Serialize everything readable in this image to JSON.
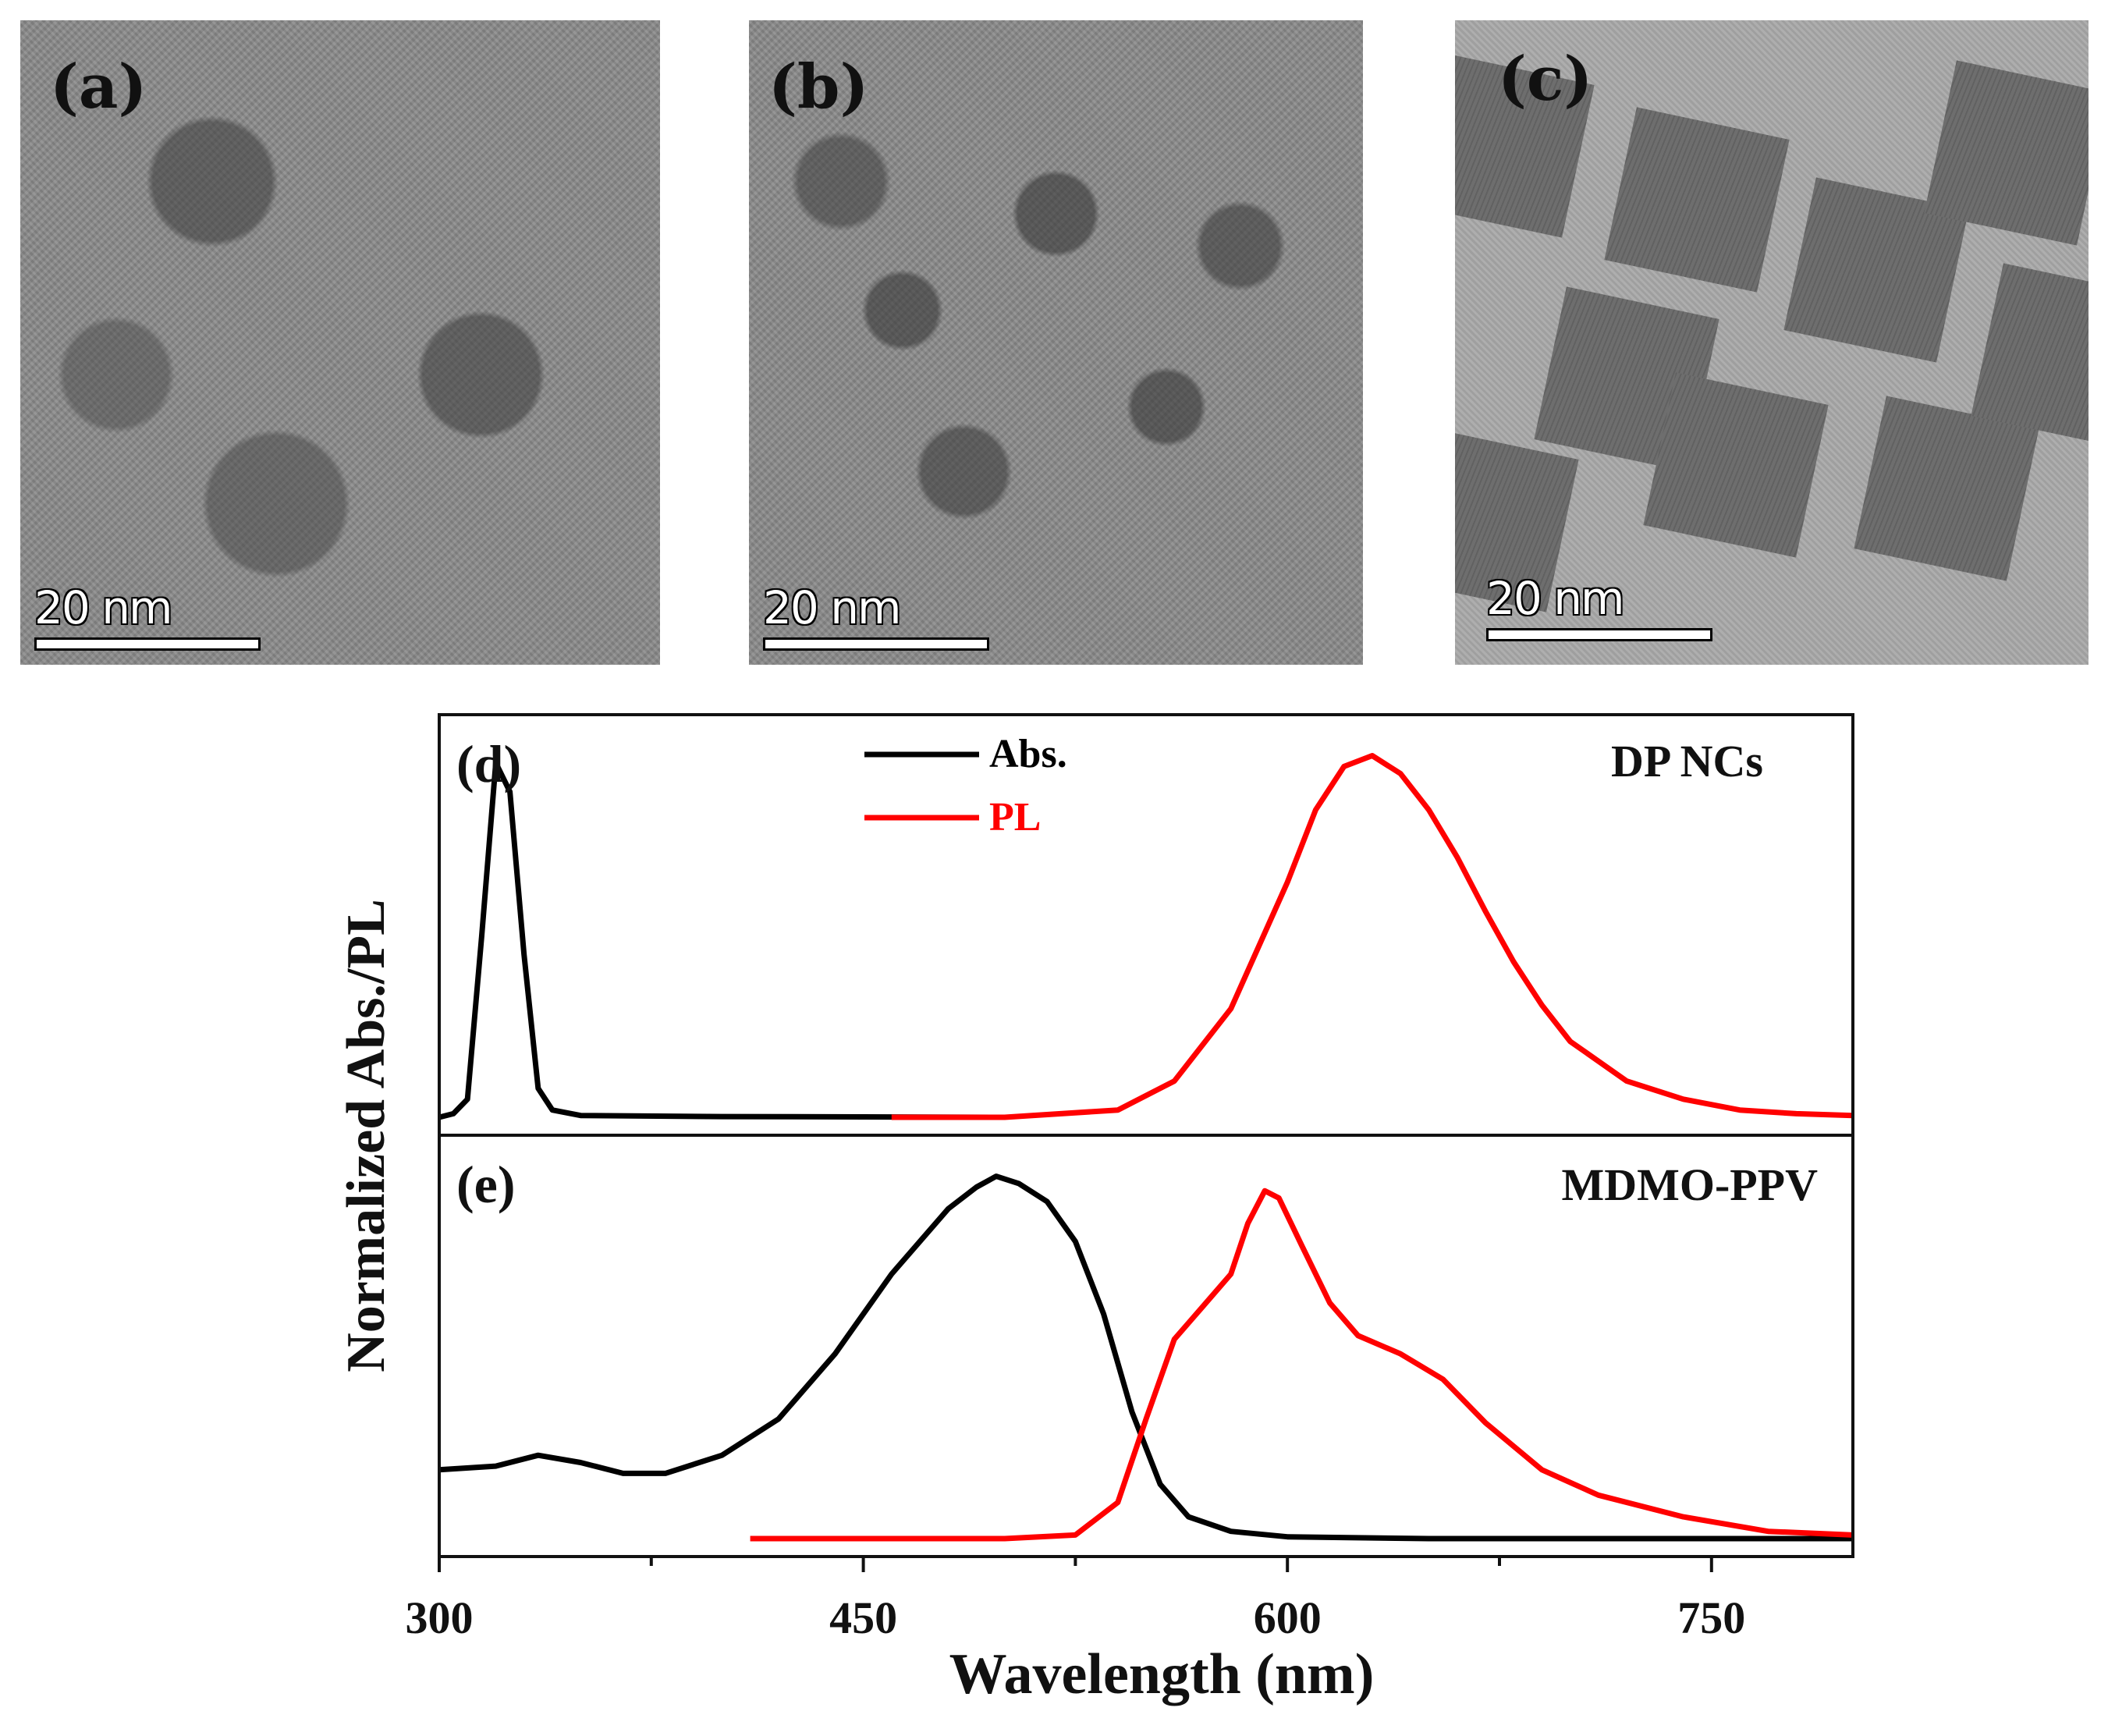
{
  "tem_panels": [
    {
      "label": "(a)",
      "scale_bar": "20 nm"
    },
    {
      "label": "(b)",
      "scale_bar": "20 nm"
    },
    {
      "label": "(c)",
      "scale_bar": "20 nm"
    }
  ],
  "chart_data": {
    "type": "line",
    "xlabel": "Wavelength (nm)",
    "ylabel": "Normalized Abs./PL",
    "xlim": [
      300,
      800
    ],
    "x_ticks": [
      300,
      450,
      600,
      750
    ],
    "legend": [
      {
        "name": "Abs.",
        "color": "#000000"
      },
      {
        "name": "PL",
        "color": "#ff0000"
      }
    ],
    "legend_position": "top-center",
    "panels": [
      {
        "label": "(d)",
        "title": "DP NCs",
        "ylim": [
          0,
          1.1
        ],
        "series": [
          {
            "name": "Abs.",
            "color": "#000000",
            "points": [
              [
                300,
                0.0
              ],
              [
                305,
                0.01
              ],
              [
                310,
                0.05
              ],
              [
                315,
                0.5
              ],
              [
                320,
                0.98
              ],
              [
                325,
                0.9
              ],
              [
                330,
                0.45
              ],
              [
                335,
                0.08
              ],
              [
                340,
                0.02
              ],
              [
                350,
                0.005
              ],
              [
                400,
                0.002
              ],
              [
                450,
                0.001
              ],
              [
                500,
                0.0
              ]
            ]
          },
          {
            "name": "PL",
            "color": "#ff0000",
            "points": [
              [
                460,
                0.0
              ],
              [
                500,
                0.0
              ],
              [
                540,
                0.02
              ],
              [
                560,
                0.1
              ],
              [
                580,
                0.3
              ],
              [
                600,
                0.65
              ],
              [
                610,
                0.85
              ],
              [
                620,
                0.97
              ],
              [
                630,
                1.0
              ],
              [
                640,
                0.95
              ],
              [
                650,
                0.85
              ],
              [
                660,
                0.72
              ],
              [
                670,
                0.57
              ],
              [
                680,
                0.43
              ],
              [
                690,
                0.31
              ],
              [
                700,
                0.21
              ],
              [
                720,
                0.1
              ],
              [
                740,
                0.05
              ],
              [
                760,
                0.02
              ],
              [
                780,
                0.01
              ],
              [
                800,
                0.005
              ]
            ]
          }
        ]
      },
      {
        "label": "(e)",
        "title": "MDMO-PPV",
        "ylim": [
          0,
          1.1
        ],
        "series": [
          {
            "name": "Abs.",
            "color": "#000000",
            "points": [
              [
                300,
                0.19
              ],
              [
                320,
                0.2
              ],
              [
                335,
                0.23
              ],
              [
                350,
                0.21
              ],
              [
                365,
                0.18
              ],
              [
                380,
                0.18
              ],
              [
                400,
                0.23
              ],
              [
                420,
                0.33
              ],
              [
                440,
                0.51
              ],
              [
                460,
                0.73
              ],
              [
                480,
                0.91
              ],
              [
                490,
                0.97
              ],
              [
                497,
                1.0
              ],
              [
                505,
                0.98
              ],
              [
                515,
                0.93
              ],
              [
                525,
                0.82
              ],
              [
                535,
                0.62
              ],
              [
                545,
                0.35
              ],
              [
                555,
                0.15
              ],
              [
                565,
                0.06
              ],
              [
                580,
                0.02
              ],
              [
                600,
                0.005
              ],
              [
                650,
                0.0
              ],
              [
                800,
                0.0
              ]
            ]
          },
          {
            "name": "PL",
            "color": "#ff0000",
            "points": [
              [
                410,
                0.0
              ],
              [
                500,
                0.0
              ],
              [
                525,
                0.01
              ],
              [
                540,
                0.1
              ],
              [
                550,
                0.33
              ],
              [
                560,
                0.55
              ],
              [
                570,
                0.64
              ],
              [
                580,
                0.73
              ],
              [
                586,
                0.87
              ],
              [
                592,
                0.96
              ],
              [
                597,
                0.94
              ],
              [
                605,
                0.81
              ],
              [
                615,
                0.65
              ],
              [
                625,
                0.56
              ],
              [
                640,
                0.51
              ],
              [
                655,
                0.44
              ],
              [
                670,
                0.32
              ],
              [
                690,
                0.19
              ],
              [
                710,
                0.12
              ],
              [
                740,
                0.06
              ],
              [
                770,
                0.02
              ],
              [
                800,
                0.01
              ]
            ]
          }
        ]
      }
    ]
  }
}
